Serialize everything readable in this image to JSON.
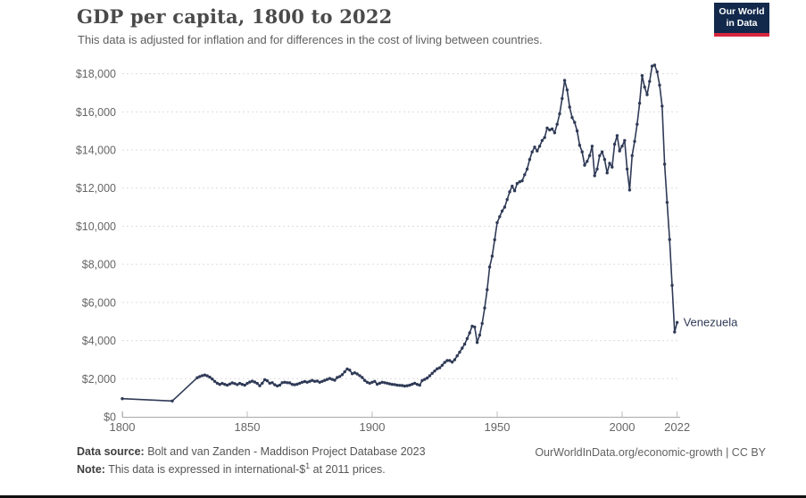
{
  "header": {
    "title": "GDP per capita, 1800 to 2022",
    "subtitle": "This data is adjusted for inflation and for differences in the cost of living between countries."
  },
  "logo": {
    "line1": "Our World",
    "line2": "in Data",
    "bg_color": "#12294b",
    "accent_color": "#d7263d"
  },
  "chart_data": {
    "type": "line",
    "title": "GDP per capita, 1800 to 2022",
    "xlabel": "",
    "ylabel": "",
    "xlim": [
      1800,
      2024
    ],
    "ylim": [
      0,
      18600
    ],
    "grid": "horizontal-dashed",
    "grid_color": "#dcdcdc",
    "axis_color": "#a9a9a9",
    "tick_label_color": "#666666",
    "x_ticks": [
      1800,
      1850,
      1900,
      1950,
      2000,
      2022
    ],
    "y_tick_values": [
      0,
      2000,
      4000,
      6000,
      8000,
      10000,
      12000,
      14000,
      16000,
      18000
    ],
    "y_tick_labels": [
      "$0",
      "$2,000",
      "$4,000",
      "$6,000",
      "$8,000",
      "$10,000",
      "$12,000",
      "$14,000",
      "$16,000",
      "$18,000"
    ],
    "entity_label": "Venezuela",
    "legend_position": "end-of-line",
    "series": [
      {
        "name": "Venezuela",
        "color": "#2f3a56",
        "points": [
          [
            1800,
            950
          ],
          [
            1820,
            830
          ],
          [
            1830,
            2050
          ],
          [
            1831,
            2110
          ],
          [
            1832,
            2160
          ],
          [
            1833,
            2190
          ],
          [
            1834,
            2150
          ],
          [
            1835,
            2080
          ],
          [
            1836,
            1980
          ],
          [
            1837,
            1860
          ],
          [
            1838,
            1760
          ],
          [
            1839,
            1700
          ],
          [
            1840,
            1750
          ],
          [
            1841,
            1700
          ],
          [
            1842,
            1660
          ],
          [
            1843,
            1720
          ],
          [
            1844,
            1780
          ],
          [
            1845,
            1740
          ],
          [
            1846,
            1690
          ],
          [
            1847,
            1750
          ],
          [
            1848,
            1700
          ],
          [
            1849,
            1660
          ],
          [
            1850,
            1750
          ],
          [
            1851,
            1820
          ],
          [
            1852,
            1870
          ],
          [
            1853,
            1820
          ],
          [
            1854,
            1750
          ],
          [
            1855,
            1630
          ],
          [
            1856,
            1760
          ],
          [
            1857,
            1950
          ],
          [
            1858,
            1890
          ],
          [
            1859,
            1760
          ],
          [
            1860,
            1790
          ],
          [
            1861,
            1680
          ],
          [
            1862,
            1620
          ],
          [
            1863,
            1660
          ],
          [
            1864,
            1790
          ],
          [
            1865,
            1810
          ],
          [
            1866,
            1790
          ],
          [
            1867,
            1780
          ],
          [
            1868,
            1700
          ],
          [
            1869,
            1680
          ],
          [
            1870,
            1710
          ],
          [
            1871,
            1760
          ],
          [
            1872,
            1810
          ],
          [
            1873,
            1850
          ],
          [
            1874,
            1810
          ],
          [
            1875,
            1860
          ],
          [
            1876,
            1910
          ],
          [
            1877,
            1860
          ],
          [
            1878,
            1880
          ],
          [
            1879,
            1810
          ],
          [
            1880,
            1860
          ],
          [
            1881,
            1910
          ],
          [
            1882,
            1960
          ],
          [
            1883,
            2010
          ],
          [
            1884,
            1960
          ],
          [
            1885,
            1920
          ],
          [
            1886,
            2060
          ],
          [
            1887,
            2110
          ],
          [
            1888,
            2210
          ],
          [
            1889,
            2360
          ],
          [
            1890,
            2510
          ],
          [
            1891,
            2450
          ],
          [
            1892,
            2260
          ],
          [
            1893,
            2310
          ],
          [
            1894,
            2250
          ],
          [
            1895,
            2160
          ],
          [
            1896,
            2060
          ],
          [
            1897,
            1910
          ],
          [
            1898,
            1810
          ],
          [
            1899,
            1760
          ],
          [
            1900,
            1810
          ],
          [
            1901,
            1860
          ],
          [
            1902,
            1710
          ],
          [
            1903,
            1760
          ],
          [
            1904,
            1810
          ],
          [
            1905,
            1790
          ],
          [
            1906,
            1760
          ],
          [
            1907,
            1730
          ],
          [
            1908,
            1700
          ],
          [
            1909,
            1690
          ],
          [
            1910,
            1660
          ],
          [
            1911,
            1650
          ],
          [
            1912,
            1640
          ],
          [
            1913,
            1610
          ],
          [
            1914,
            1630
          ],
          [
            1915,
            1660
          ],
          [
            1916,
            1710
          ],
          [
            1917,
            1760
          ],
          [
            1918,
            1700
          ],
          [
            1919,
            1660
          ],
          [
            1920,
            1900
          ],
          [
            1921,
            1960
          ],
          [
            1922,
            2030
          ],
          [
            1923,
            2150
          ],
          [
            1924,
            2280
          ],
          [
            1925,
            2400
          ],
          [
            1926,
            2520
          ],
          [
            1927,
            2570
          ],
          [
            1928,
            2700
          ],
          [
            1929,
            2850
          ],
          [
            1930,
            2950
          ],
          [
            1931,
            2950
          ],
          [
            1932,
            2870
          ],
          [
            1933,
            2990
          ],
          [
            1934,
            3200
          ],
          [
            1935,
            3390
          ],
          [
            1936,
            3600
          ],
          [
            1937,
            3810
          ],
          [
            1938,
            4100
          ],
          [
            1939,
            4400
          ],
          [
            1940,
            4760
          ],
          [
            1941,
            4710
          ],
          [
            1942,
            3900
          ],
          [
            1943,
            4290
          ],
          [
            1944,
            4900
          ],
          [
            1945,
            5710
          ],
          [
            1946,
            6670
          ],
          [
            1947,
            7860
          ],
          [
            1948,
            8430
          ],
          [
            1949,
            9290
          ],
          [
            1950,
            10190
          ],
          [
            1951,
            10500
          ],
          [
            1952,
            10800
          ],
          [
            1953,
            11000
          ],
          [
            1954,
            11400
          ],
          [
            1955,
            11800
          ],
          [
            1956,
            12100
          ],
          [
            1957,
            11860
          ],
          [
            1958,
            12240
          ],
          [
            1959,
            12330
          ],
          [
            1960,
            12380
          ],
          [
            1961,
            12700
          ],
          [
            1962,
            13000
          ],
          [
            1963,
            13500
          ],
          [
            1964,
            13900
          ],
          [
            1965,
            14150
          ],
          [
            1966,
            13950
          ],
          [
            1967,
            14200
          ],
          [
            1968,
            14500
          ],
          [
            1969,
            14650
          ],
          [
            1970,
            15150
          ],
          [
            1971,
            15050
          ],
          [
            1972,
            15100
          ],
          [
            1973,
            14900
          ],
          [
            1974,
            15350
          ],
          [
            1975,
            15900
          ],
          [
            1976,
            16700
          ],
          [
            1977,
            17650
          ],
          [
            1978,
            17150
          ],
          [
            1979,
            16250
          ],
          [
            1980,
            15700
          ],
          [
            1981,
            15450
          ],
          [
            1982,
            15000
          ],
          [
            1983,
            14250
          ],
          [
            1984,
            13900
          ],
          [
            1985,
            13200
          ],
          [
            1986,
            13400
          ],
          [
            1987,
            13700
          ],
          [
            1988,
            14200
          ],
          [
            1989,
            12650
          ],
          [
            1990,
            13000
          ],
          [
            1991,
            13700
          ],
          [
            1992,
            13900
          ],
          [
            1993,
            13500
          ],
          [
            1994,
            12800
          ],
          [
            1995,
            13300
          ],
          [
            1996,
            13100
          ],
          [
            1997,
            14300
          ],
          [
            1998,
            14750
          ],
          [
            1999,
            13950
          ],
          [
            2000,
            14200
          ],
          [
            2001,
            14500
          ],
          [
            2002,
            13000
          ],
          [
            2003,
            11900
          ],
          [
            2004,
            13700
          ],
          [
            2005,
            14450
          ],
          [
            2006,
            15350
          ],
          [
            2007,
            16450
          ],
          [
            2008,
            17900
          ],
          [
            2009,
            17300
          ],
          [
            2010,
            16900
          ],
          [
            2011,
            17600
          ],
          [
            2012,
            18400
          ],
          [
            2013,
            18450
          ],
          [
            2014,
            18100
          ],
          [
            2015,
            17400
          ],
          [
            2016,
            16300
          ],
          [
            2017,
            13250
          ],
          [
            2018,
            11250
          ],
          [
            2019,
            9300
          ],
          [
            2020,
            6900
          ],
          [
            2021,
            4450
          ],
          [
            2022,
            4950
          ]
        ]
      }
    ]
  },
  "footer": {
    "source_label": "Data source:",
    "source_text": " Bolt and van Zanden - Maddison Project Database 2023",
    "note_label": "Note:",
    "note_text_pre": " This data is expressed in international-$",
    "note_sup": "1",
    "note_text_post": " at 2011 prices.",
    "link_text": "OurWorldInData.org/economic-growth | CC BY"
  }
}
